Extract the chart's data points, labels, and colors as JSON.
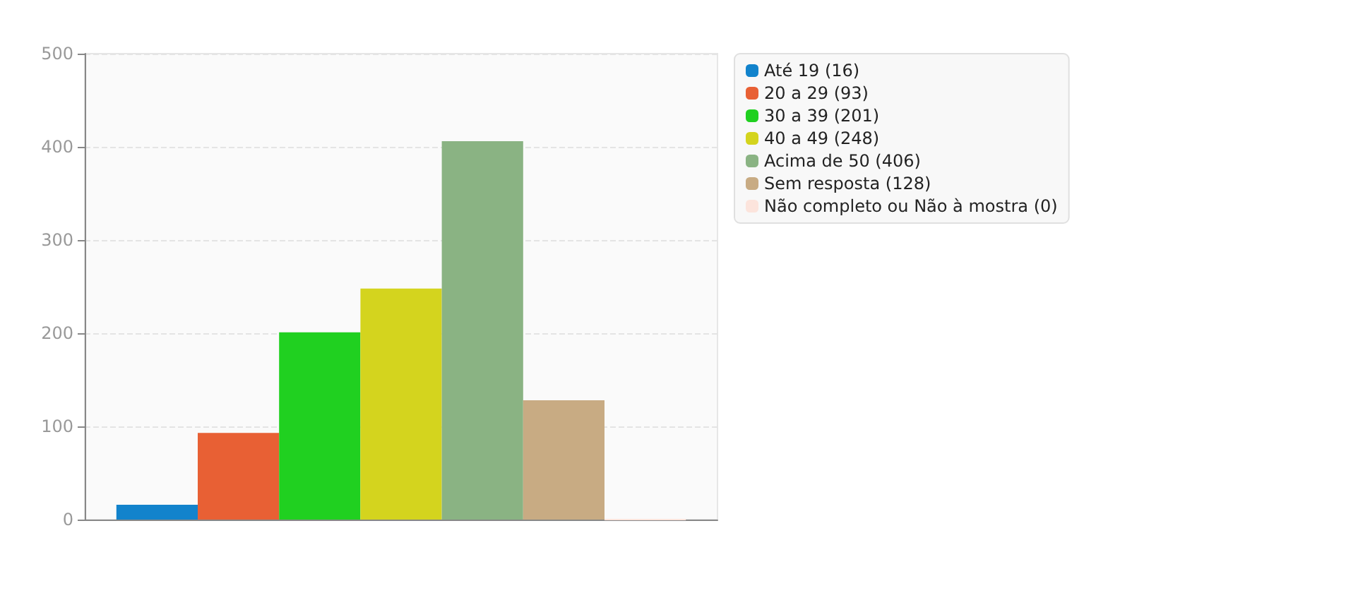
{
  "chart_data": {
    "type": "bar",
    "categories": [
      null
    ],
    "series": [
      {
        "name": "Até 19 (16)",
        "color": "#1283cc",
        "values": [
          16
        ]
      },
      {
        "name": "20 a 29 (93)",
        "color": "#e86034",
        "values": [
          93
        ]
      },
      {
        "name": "30 a 39 (201)",
        "color": "#20d020",
        "values": [
          201
        ]
      },
      {
        "name": "40 a 49 (248)",
        "color": "#d4d41e",
        "values": [
          248
        ]
      },
      {
        "name": "Acima de 50 (406)",
        "color": "#8ab383",
        "values": [
          406
        ]
      },
      {
        "name": "Sem resposta (128)",
        "color": "#c8ab83",
        "values": [
          128
        ]
      },
      {
        "name": "Não completo ou Não à mostra (0)",
        "color": "#fce4dc",
        "values": [
          0
        ]
      }
    ],
    "ylim": [
      0,
      500
    ],
    "yticks": [
      0,
      100,
      200,
      300,
      400,
      500
    ],
    "grid": "y",
    "legend": "top right"
  }
}
